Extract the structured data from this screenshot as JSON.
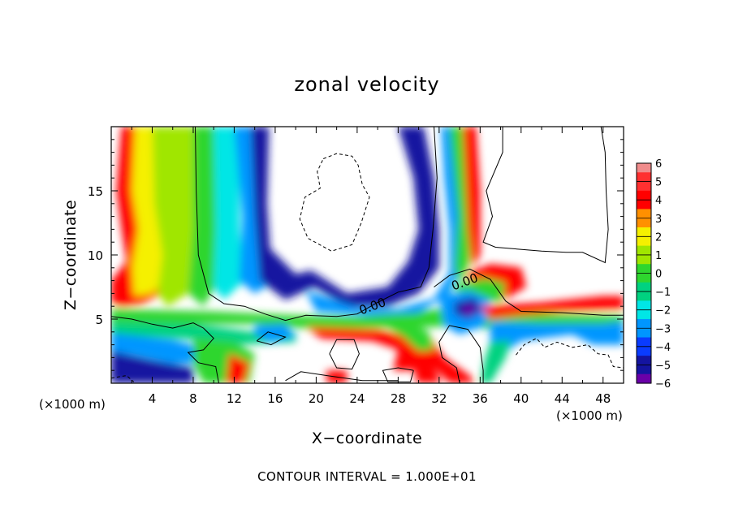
{
  "chart_data": {
    "type": "heatmap",
    "title": "zonal velocity",
    "xlabel": "X−coordinate",
    "ylabel": "Z−coordinate",
    "x_unit_left": "(×1000 m)",
    "x_unit_right": "(×1000 m)",
    "xlim": [
      0,
      50
    ],
    "ylim": [
      0,
      20
    ],
    "x_ticks": [
      4,
      8,
      12,
      16,
      20,
      24,
      28,
      32,
      36,
      40,
      44,
      48
    ],
    "x_tick_labels": [
      "4",
      "8",
      "12",
      "16",
      "20",
      "24",
      "28",
      "32",
      "36",
      "40",
      "44",
      "48"
    ],
    "y_ticks": [
      5,
      10,
      15
    ],
    "y_tick_labels": [
      "5",
      "10",
      "15"
    ],
    "colorbar": {
      "range": [
        -6,
        6
      ],
      "tick_labels": [
        "6",
        "5",
        "4",
        "3",
        "2",
        "1",
        "0",
        "−1",
        "−2",
        "−3",
        "−4",
        "−5",
        "−6"
      ],
      "tick_values": [
        6,
        5,
        4,
        3,
        2,
        1,
        0,
        -1,
        -2,
        -3,
        -4,
        -5,
        -6
      ],
      "colors": {
        "6": "#f08c8c",
        "5": "#ff3030",
        "4": "#ff0000",
        "3": "#ff9000",
        "2": "#f5f000",
        "1": "#a0e600",
        "0": "#2ed62e",
        "-1": "#00d280",
        "-2": "#00e6e6",
        "-3": "#0096ff",
        "-4": "#0a3cff",
        "-5": "#1414a0",
        "-6": "#6a00a8"
      }
    },
    "contour_labels": [
      {
        "text": "0.00",
        "x": 25.5,
        "y": 6.0
      },
      {
        "text": "0.00",
        "x": 34.5,
        "y": 7.9
      }
    ],
    "contour_interval_note": "CONTOUR INTERVAL =  1.000E+01",
    "legend": "colorbar right"
  }
}
